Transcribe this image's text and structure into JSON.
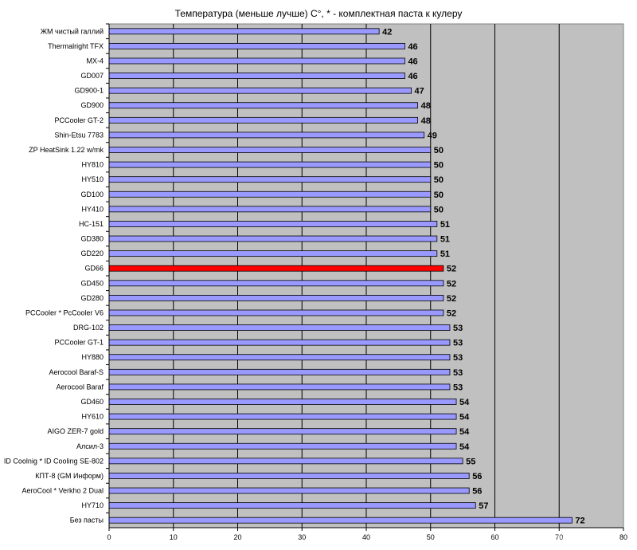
{
  "chart_data": {
    "type": "bar",
    "orientation": "horizontal",
    "title": "Температура (меньше лучше) С°, * - комплектная паста к кулеру",
    "xlabel": "",
    "ylabel": "",
    "xlim": [
      0,
      80
    ],
    "x_ticks": [
      "0",
      "10",
      "20",
      "30",
      "40",
      "50",
      "60",
      "70",
      "80"
    ],
    "grid": "vertical",
    "categories": [
      "ЖМ чистый галлий",
      "Thermalright TFX",
      "MX-4",
      "GD007",
      "GD900-1",
      "GD900",
      "PCCooler GT-2",
      "Shin-Etsu 7783",
      "ZP HeatSink 1.22 w/mk",
      "HY810",
      "HY510",
      "GD100",
      "HY410",
      "HC-151",
      "GD380",
      "GD220",
      "GD66",
      "GD450",
      "GD280",
      "PCCooler * PcCooler V6",
      "DRG-102",
      "PCCooler GT-1",
      "HY880",
      "Aerocool Baraf-S",
      "Aerocool Baraf",
      "GD460",
      "HY610",
      "AIGO ZER-7 gold",
      "Алсил-3",
      "ID Coolnig * ID Cooling SE-802",
      "КПТ-8 (GM Информ)",
      "AeroCool * Verkho 2 Dual",
      "HY710",
      "Без пасты"
    ],
    "values": [
      42,
      46,
      46,
      46,
      47,
      48,
      48,
      49,
      50,
      50,
      50,
      50,
      50,
      51,
      51,
      51,
      52,
      52,
      52,
      52,
      53,
      53,
      53,
      53,
      53,
      54,
      54,
      54,
      54,
      55,
      56,
      56,
      57,
      72
    ],
    "value_labels": [
      "42",
      "46",
      "46",
      "46",
      "47",
      "48",
      "48",
      "49",
      "50",
      "50",
      "50",
      "50",
      "50",
      "51",
      "51",
      "51",
      "52",
      "52",
      "52",
      "52",
      "53",
      "53",
      "53",
      "53",
      "53",
      "54",
      "54",
      "54",
      "54",
      "55",
      "56",
      "56",
      "57",
      "72"
    ],
    "highlight_category": "GD66",
    "colors": {
      "bar": "#9999ff",
      "highlight": "#ff0000",
      "plot_background": "#c0c0c0",
      "grid": "#000000"
    }
  }
}
